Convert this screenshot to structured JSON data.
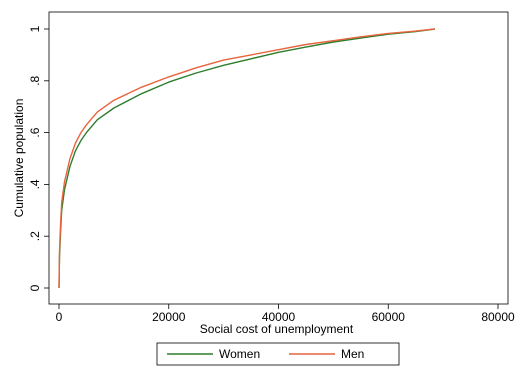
{
  "chart_data": {
    "type": "line",
    "title": "",
    "xlabel": "Social cost of unemployment",
    "ylabel": "Cumulative population",
    "xlim": [
      0,
      80000
    ],
    "ylim": [
      0,
      1
    ],
    "x_ticks": [
      0,
      20000,
      40000,
      60000,
      80000
    ],
    "x_tick_labels": [
      "0",
      "20000",
      "40000",
      "60000",
      "80000"
    ],
    "y_ticks": [
      0,
      0.2,
      0.4,
      0.6,
      0.8,
      1
    ],
    "y_tick_labels": [
      "0",
      ".2",
      ".4",
      ".6",
      ".8",
      "1"
    ],
    "grid": false,
    "legend_position": "bottom",
    "series": [
      {
        "name": "Women",
        "color": "#2e7d2e",
        "x": [
          0,
          100,
          300,
          500,
          1000,
          2000,
          3000,
          4000,
          5000,
          7000,
          10000,
          15000,
          20000,
          25000,
          30000,
          35000,
          40000,
          45000,
          50000,
          55000,
          60000,
          65000,
          68500
        ],
        "y": [
          0,
          0.12,
          0.22,
          0.3,
          0.38,
          0.47,
          0.53,
          0.57,
          0.6,
          0.65,
          0.695,
          0.75,
          0.795,
          0.83,
          0.86,
          0.885,
          0.91,
          0.93,
          0.95,
          0.965,
          0.98,
          0.99,
          1.0
        ]
      },
      {
        "name": "Men",
        "color": "#e8643c",
        "x": [
          0,
          100,
          300,
          500,
          1000,
          2000,
          3000,
          4000,
          5000,
          7000,
          10000,
          15000,
          20000,
          25000,
          30000,
          35000,
          40000,
          45000,
          50000,
          55000,
          60000,
          65000,
          68500
        ],
        "y": [
          0,
          0.14,
          0.25,
          0.33,
          0.41,
          0.5,
          0.56,
          0.6,
          0.63,
          0.68,
          0.725,
          0.775,
          0.815,
          0.85,
          0.88,
          0.9,
          0.92,
          0.94,
          0.955,
          0.97,
          0.983,
          0.992,
          1.0
        ]
      }
    ]
  }
}
